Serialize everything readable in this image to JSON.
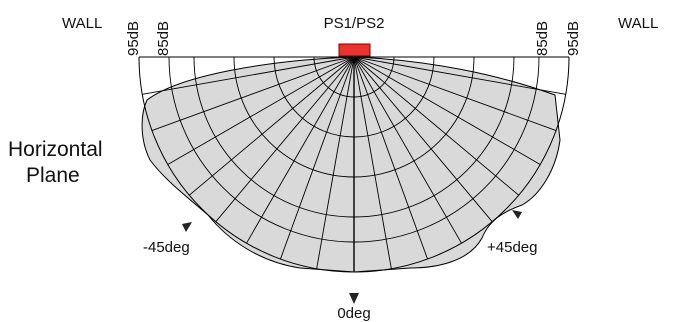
{
  "labels": {
    "wall_left": "WALL",
    "wall_right": "WALL",
    "device": "PS1/PS2",
    "ring_95_left": "95dB",
    "ring_85_left": "85dB",
    "ring_85_right": "85dB",
    "ring_95_right": "95dB",
    "plane_line1": "Horizontal",
    "plane_line2": "Plane",
    "angle_left": "-45deg",
    "angle_center": "0deg",
    "angle_right": "+45deg"
  },
  "colors": {
    "coverage_fill": "#d9d9d9",
    "device_fill": "#e8332f",
    "device_stroke": "#7a0000",
    "grid_line": "#000000"
  },
  "coverage_direction_deg": [
    -45,
    0,
    45
  ]
}
